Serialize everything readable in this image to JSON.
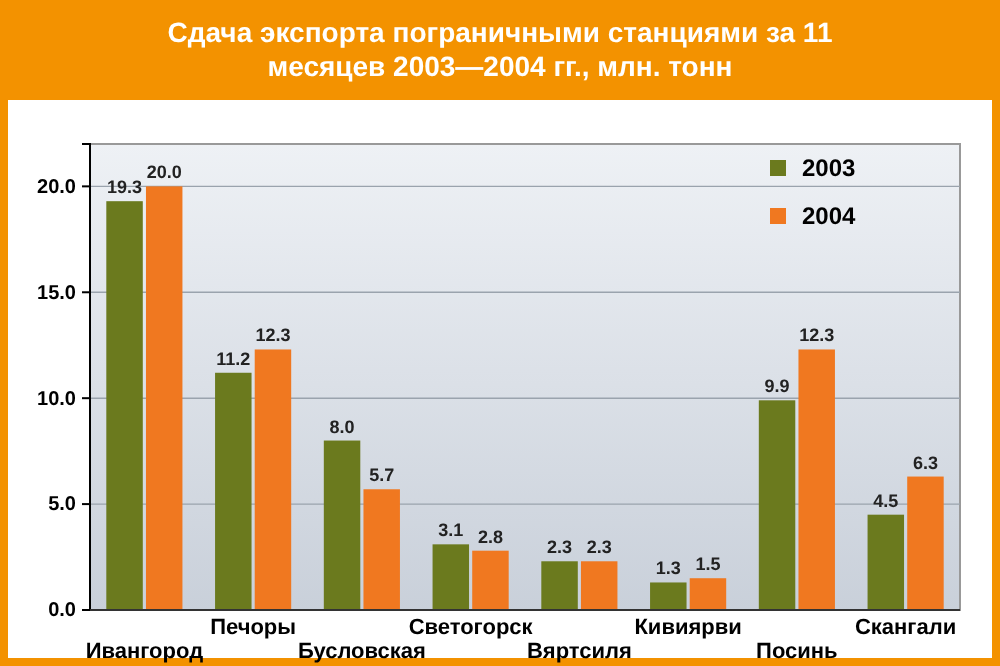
{
  "chart_data": {
    "type": "bar",
    "title": "Сдача экспорта пограничными станциями за 11 месяцев 2003—2004 гг., млн. тонн",
    "categories": [
      "Ивангород",
      "Печоры",
      "Бусловская",
      "Светогорск",
      "Вяртсиля",
      "Кивиярви",
      "Посинь",
      "Скангали"
    ],
    "series": [
      {
        "name": "2003",
        "color": "#6b7a1e",
        "values": [
          19.3,
          11.2,
          8.0,
          3.1,
          2.3,
          1.3,
          9.9,
          4.5
        ],
        "value_labels": [
          "19.3",
          "11.2",
          "8.0",
          "3.1",
          "2.3",
          "1.3",
          "9.9",
          "4.5"
        ]
      },
      {
        "name": "2004",
        "color": "#f07820",
        "values": [
          20.0,
          12.3,
          5.7,
          2.8,
          2.3,
          1.5,
          12.3,
          6.3
        ],
        "value_labels": [
          "20.0",
          "12.3",
          "5.7",
          "2.8",
          "2.3",
          "1.5",
          "12.3",
          "6.3"
        ]
      }
    ],
    "ylim": [
      0,
      22
    ],
    "yticks": [
      {
        "value": 0,
        "label": "0.0"
      },
      {
        "value": 5,
        "label": "5.0"
      },
      {
        "value": 10,
        "label": "10.0"
      },
      {
        "value": 15,
        "label": "15.0"
      },
      {
        "value": 20,
        "label": "20.0"
      }
    ],
    "grid": "y",
    "legend": "top right"
  }
}
